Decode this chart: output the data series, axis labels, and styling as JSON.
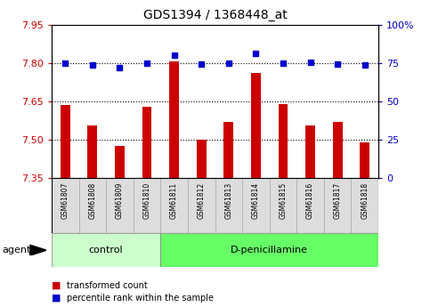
{
  "title": "GDS1394 / 1368448_at",
  "samples": [
    "GSM61807",
    "GSM61808",
    "GSM61809",
    "GSM61810",
    "GSM61811",
    "GSM61812",
    "GSM61813",
    "GSM61814",
    "GSM61815",
    "GSM61816",
    "GSM61817",
    "GSM61818"
  ],
  "red_values": [
    7.635,
    7.555,
    7.475,
    7.63,
    7.805,
    7.5,
    7.57,
    7.76,
    7.64,
    7.555,
    7.57,
    7.49
  ],
  "blue_values": [
    75.0,
    73.5,
    72.0,
    75.0,
    80.0,
    74.0,
    75.0,
    81.0,
    75.0,
    75.5,
    74.5,
    73.5
  ],
  "ylim_left": [
    7.35,
    7.95
  ],
  "ylim_right": [
    0,
    100
  ],
  "yticks_left": [
    7.35,
    7.5,
    7.65,
    7.8,
    7.95
  ],
  "yticks_right": [
    0,
    25,
    50,
    75,
    100
  ],
  "ytick_labels_right": [
    "0",
    "25",
    "50",
    "75",
    "100%"
  ],
  "control_count": 4,
  "control_label": "control",
  "treatment_label": "D-penicillamine",
  "group_label": "agent",
  "bar_color": "#cc0000",
  "dot_color": "#0000cc",
  "control_bg": "#ccffcc",
  "treatment_bg": "#66ff66",
  "sample_bg": "#dddddd",
  "sample_border": "#aaaaaa",
  "legend_bar_label": "transformed count",
  "legend_dot_label": "percentile rank within the sample",
  "title_color": "#000000",
  "left_tick_color": "#cc0000",
  "right_tick_color": "#0000cc",
  "hline_positions": [
    7.5,
    7.65,
    7.8
  ],
  "bar_width": 0.35
}
